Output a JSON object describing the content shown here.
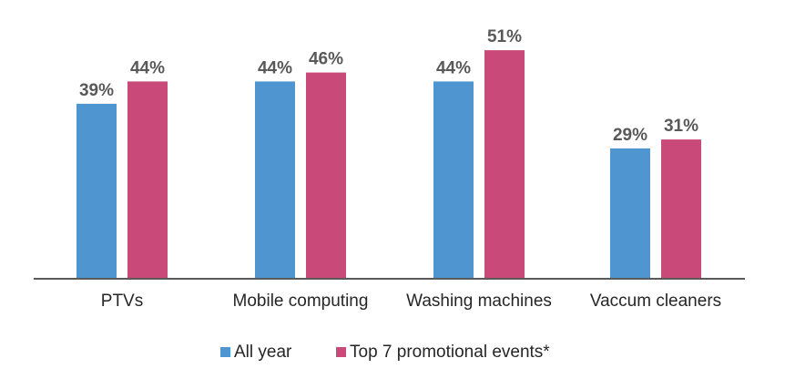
{
  "chart_data": {
    "type": "bar",
    "categories": [
      "PTVs",
      "Mobile computing",
      "Washing machines",
      "Vaccum cleaners"
    ],
    "series": [
      {
        "name": "All year",
        "values": [
          39,
          44,
          44,
          29
        ],
        "labels": [
          "39%",
          "44%",
          "44%",
          "29%"
        ],
        "color": "#4f96d0"
      },
      {
        "name": "Top 7 promotional events*",
        "values": [
          44,
          46,
          51,
          31
        ],
        "labels": [
          "44%",
          "46%",
          "51%",
          "31%"
        ],
        "color": "#c94a78"
      }
    ],
    "ylim": [
      0,
      60
    ],
    "grid": false,
    "legend_position": "bottom",
    "axis_color": "#595959"
  }
}
